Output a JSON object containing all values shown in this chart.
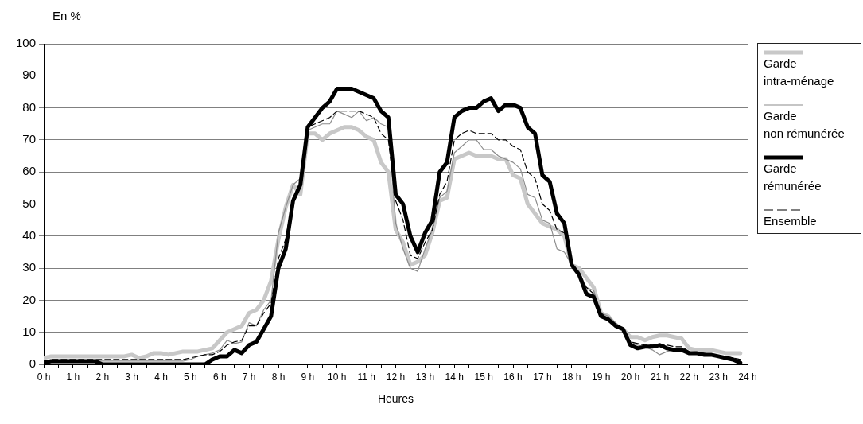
{
  "chart_data": {
    "type": "line",
    "xlabel": "Heures",
    "ylabel": "En %",
    "x": [
      0,
      0.25,
      0.5,
      0.75,
      1,
      1.25,
      1.5,
      1.75,
      2,
      2.25,
      2.5,
      2.75,
      3,
      3.25,
      3.5,
      3.75,
      4,
      4.25,
      4.5,
      4.75,
      5,
      5.25,
      5.5,
      5.75,
      6,
      6.25,
      6.5,
      6.75,
      7,
      7.25,
      7.5,
      7.75,
      8,
      8.25,
      8.5,
      8.75,
      9,
      9.25,
      9.5,
      9.75,
      10,
      10.25,
      10.5,
      10.75,
      11,
      11.25,
      11.5,
      11.75,
      12,
      12.25,
      12.5,
      12.75,
      13,
      13.25,
      13.5,
      13.75,
      14,
      14.25,
      14.5,
      14.75,
      15,
      15.25,
      15.5,
      15.75,
      16,
      16.25,
      16.5,
      16.75,
      17,
      17.25,
      17.5,
      17.75,
      18,
      18.25,
      18.5,
      18.75,
      19,
      19.25,
      19.5,
      19.75,
      20,
      20.25,
      20.5,
      20.75,
      21,
      21.25,
      21.5,
      21.75,
      22,
      22.25,
      22.5,
      22.75,
      23,
      23.25,
      23.5,
      23.75
    ],
    "series": [
      {
        "name": "Garde intra-ménage",
        "color": "#c8c8c8",
        "values": [
          2,
          2.5,
          2.5,
          2.5,
          2.5,
          2.5,
          2.5,
          2.5,
          2.5,
          2.5,
          2.5,
          2.5,
          3,
          2,
          2.5,
          3.5,
          3.5,
          3,
          3.5,
          4,
          4,
          4,
          4.5,
          5,
          7.5,
          10,
          11,
          12,
          16,
          17,
          20,
          26,
          39,
          49,
          56,
          53,
          72,
          72,
          70,
          72,
          73,
          74,
          74,
          73,
          71,
          70,
          63,
          60,
          42,
          38,
          31,
          32,
          34,
          41,
          51,
          52,
          64,
          65,
          66,
          65,
          65,
          65,
          64,
          64,
          59,
          58,
          50,
          47,
          44,
          43,
          42,
          40,
          31,
          30,
          27,
          24,
          16,
          15,
          12,
          11,
          8.5,
          8.5,
          7.5,
          8.5,
          9,
          9,
          8.5,
          8,
          5,
          4.5,
          4.5,
          4.5,
          4,
          3.5,
          3.5,
          3.5
        ]
      },
      {
        "name": "Garde non rémunérée",
        "color": "#8c8c8c",
        "values": [
          1,
          1,
          1,
          1,
          1,
          1,
          1,
          1,
          1,
          1,
          1,
          1,
          1,
          1,
          1,
          1,
          1,
          1,
          1,
          1,
          1.5,
          2.5,
          3,
          3.5,
          4.5,
          7.5,
          6.5,
          7,
          13,
          12,
          17,
          20,
          41,
          49,
          56,
          58,
          73,
          74,
          75,
          75,
          79,
          78,
          77,
          79,
          76,
          77,
          75,
          74,
          44,
          36,
          30,
          29,
          36,
          42,
          52,
          54,
          66,
          68,
          70,
          70,
          67,
          67,
          65,
          64,
          63,
          61,
          53,
          52,
          45,
          44,
          36,
          35,
          31,
          29,
          24,
          23,
          16,
          15,
          13,
          11,
          7,
          6,
          5.5,
          4.5,
          3,
          4,
          4.5,
          4.5,
          3.5,
          3.5,
          3,
          3,
          2.5,
          2,
          2,
          1.5
        ]
      },
      {
        "name": "Garde rémunérée",
        "color": "#000000",
        "values": [
          0.5,
          1,
          1,
          1,
          1,
          1,
          1,
          1,
          0,
          0,
          0,
          0,
          0,
          0,
          0,
          0,
          0,
          0,
          0,
          0,
          0,
          0,
          0,
          1.5,
          2.5,
          2.5,
          4.5,
          3.5,
          6,
          7,
          11,
          15,
          30,
          36,
          51,
          56,
          74,
          77,
          80,
          82,
          86,
          86,
          86,
          85,
          84,
          83,
          79,
          77,
          53,
          50,
          40,
          35,
          41,
          45,
          60,
          63,
          77,
          79,
          80,
          80,
          82,
          83,
          79,
          81,
          81,
          80,
          74,
          72,
          59,
          57,
          47,
          44,
          31,
          28,
          22,
          21,
          15,
          14,
          12,
          11,
          6,
          5,
          5.5,
          5.5,
          6,
          5,
          4.5,
          4.5,
          3.5,
          3.5,
          3,
          3,
          2.5,
          2,
          1.5,
          0.5
        ]
      },
      {
        "name": "Ensemble",
        "color": "#000000",
        "line_style": "dashed",
        "values": [
          1,
          1.5,
          1.5,
          1.5,
          1.5,
          1.5,
          1.5,
          1.5,
          1.5,
          1.5,
          1.5,
          1.5,
          1.5,
          1.5,
          1.5,
          1.5,
          1.5,
          1.5,
          1.5,
          1.5,
          2,
          2.5,
          3,
          3,
          4,
          6,
          7,
          7.5,
          12,
          12,
          16,
          19,
          33,
          39,
          52,
          55,
          74,
          75,
          76,
          77,
          79,
          79,
          79,
          79,
          78,
          77,
          72,
          70,
          51,
          45,
          34,
          33,
          38,
          42,
          53,
          57,
          70,
          72,
          73,
          72,
          72,
          72,
          70,
          70,
          68,
          67,
          60,
          58,
          50,
          48,
          42,
          41,
          31,
          28,
          24,
          22,
          16,
          14,
          12,
          11,
          7,
          6.5,
          6,
          6,
          6,
          6,
          5.5,
          5.5,
          4,
          3.5,
          3.5,
          3,
          2.5,
          2.5,
          2,
          1.5
        ]
      }
    ],
    "xlim": [
      0,
      24
    ],
    "xticks": [
      {
        "value": 0,
        "label": "0 h"
      },
      {
        "value": 0.5,
        "label": null
      },
      {
        "value": 1,
        "label": "1 h"
      },
      {
        "value": 1.5,
        "label": null
      },
      {
        "value": 2,
        "label": "2 h"
      },
      {
        "value": 2.5,
        "label": null
      },
      {
        "value": 3,
        "label": "3 h"
      },
      {
        "value": 3.5,
        "label": null
      },
      {
        "value": 4,
        "label": "4 h"
      },
      {
        "value": 4.5,
        "label": null
      },
      {
        "value": 5,
        "label": "5 h"
      },
      {
        "value": 5.5,
        "label": null
      },
      {
        "value": 6,
        "label": "6 h"
      },
      {
        "value": 6.5,
        "label": null
      },
      {
        "value": 7,
        "label": "7 h"
      },
      {
        "value": 7.5,
        "label": null
      },
      {
        "value": 8,
        "label": "8 h"
      },
      {
        "value": 8.5,
        "label": null
      },
      {
        "value": 9,
        "label": "9 h"
      },
      {
        "value": 9.5,
        "label": null
      },
      {
        "value": 10,
        "label": "10 h"
      },
      {
        "value": 10.5,
        "label": null
      },
      {
        "value": 11,
        "label": "11 h"
      },
      {
        "value": 11.5,
        "label": null
      },
      {
        "value": 12,
        "label": "12 h"
      },
      {
        "value": 12.5,
        "label": null
      },
      {
        "value": 13,
        "label": "13 h"
      },
      {
        "value": 13.5,
        "label": null
      },
      {
        "value": 14,
        "label": "14 h"
      },
      {
        "value": 14.5,
        "label": null
      },
      {
        "value": 15,
        "label": "15 h"
      },
      {
        "value": 15.5,
        "label": null
      },
      {
        "value": 16,
        "label": "16 h"
      },
      {
        "value": 16.5,
        "label": null
      },
      {
        "value": 17,
        "label": "17 h"
      },
      {
        "value": 17.5,
        "label": null
      },
      {
        "value": 18,
        "label": "18 h"
      },
      {
        "value": 18.5,
        "label": null
      },
      {
        "value": 19,
        "label": "19 h"
      },
      {
        "value": 19.5,
        "label": null
      },
      {
        "value": 20,
        "label": "20 h"
      },
      {
        "value": 20.5,
        "label": null
      },
      {
        "value": 21,
        "label": "21 h"
      },
      {
        "value": 21.5,
        "label": null
      },
      {
        "value": 22,
        "label": "22 h"
      },
      {
        "value": 22.5,
        "label": null
      },
      {
        "value": 23,
        "label": "23 h"
      },
      {
        "value": 23.5,
        "label": null
      },
      {
        "value": 24,
        "label": "24 h"
      }
    ],
    "ylim": [
      0,
      100
    ],
    "yticks": [
      0,
      10,
      20,
      30,
      40,
      50,
      60,
      70,
      80,
      90,
      100
    ],
    "grid": "y",
    "legend": "right",
    "marker": "none"
  }
}
